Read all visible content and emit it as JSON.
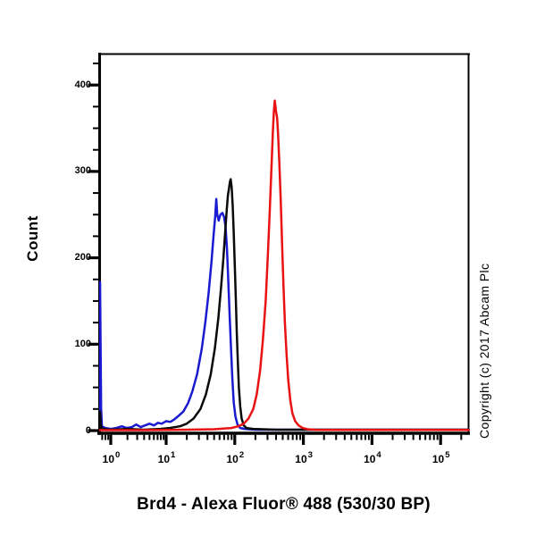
{
  "figure": {
    "y_axis_label": "Count",
    "x_axis_title": "Brd4 - Alexa Fluor® 488 (530/30 BP)",
    "copyright": "Copyright (c) 2017 Abcam Plc"
  },
  "chart_data": {
    "type": "line",
    "subtype": "flow-cytometry-histogram-overlay",
    "title": "Brd4 - Alexa Fluor® 488 (530/30 BP)",
    "xlabel": "Brd4 - Alexa Fluor® 488 (530/30 BP)",
    "ylabel": "Count",
    "x_scale": "log10",
    "x_tick_exponents": [
      0,
      1,
      2,
      3,
      4,
      5
    ],
    "x_range_log10": [
      -0.21,
      5.41
    ],
    "ylim": [
      0,
      435
    ],
    "y_ticks": [
      0,
      100,
      200,
      300,
      400
    ],
    "y_minor_step": 25,
    "grid": false,
    "legend": "none",
    "frame_color": "#000000",
    "series": [
      {
        "name": "blue-curve",
        "color": "#1a1ad0",
        "points": [
          [
            -0.21,
            2
          ],
          [
            -0.2,
            4
          ],
          [
            -0.193,
            172
          ],
          [
            -0.185,
            110
          ],
          [
            -0.175,
            25
          ],
          [
            -0.16,
            5
          ],
          [
            -0.1,
            3
          ],
          [
            0.0,
            2
          ],
          [
            0.1,
            3
          ],
          [
            0.2,
            5
          ],
          [
            0.28,
            3
          ],
          [
            0.38,
            4
          ],
          [
            0.46,
            7
          ],
          [
            0.54,
            4
          ],
          [
            0.62,
            6
          ],
          [
            0.7,
            8
          ],
          [
            0.78,
            6
          ],
          [
            0.85,
            9
          ],
          [
            0.92,
            8
          ],
          [
            1.0,
            11
          ],
          [
            1.06,
            10
          ],
          [
            1.12,
            13
          ],
          [
            1.18,
            17
          ],
          [
            1.25,
            22
          ],
          [
            1.32,
            32
          ],
          [
            1.38,
            45
          ],
          [
            1.45,
            65
          ],
          [
            1.52,
            95
          ],
          [
            1.57,
            125
          ],
          [
            1.62,
            160
          ],
          [
            1.66,
            195
          ],
          [
            1.69,
            225
          ],
          [
            1.715,
            248
          ],
          [
            1.73,
            268
          ],
          [
            1.745,
            250
          ],
          [
            1.765,
            243
          ],
          [
            1.79,
            250
          ],
          [
            1.82,
            252
          ],
          [
            1.845,
            247
          ],
          [
            1.865,
            237
          ],
          [
            1.885,
            212
          ],
          [
            1.905,
            175
          ],
          [
            1.925,
            135
          ],
          [
            1.945,
            95
          ],
          [
            1.965,
            60
          ],
          [
            1.985,
            33
          ],
          [
            2.01,
            16
          ],
          [
            2.04,
            7
          ],
          [
            2.08,
            3
          ],
          [
            2.14,
            2
          ],
          [
            2.3,
            1
          ],
          [
            3.2,
            1
          ],
          [
            4.3,
            1
          ],
          [
            5.41,
            1
          ]
        ]
      },
      {
        "name": "black-curve",
        "color": "#0a0a0a",
        "points": [
          [
            -0.21,
            1
          ],
          [
            -0.2,
            3
          ],
          [
            -0.193,
            22
          ],
          [
            -0.18,
            6
          ],
          [
            -0.15,
            2
          ],
          [
            0.0,
            1
          ],
          [
            0.3,
            2
          ],
          [
            0.6,
            1
          ],
          [
            0.9,
            2
          ],
          [
            1.05,
            3
          ],
          [
            1.2,
            5
          ],
          [
            1.3,
            8
          ],
          [
            1.4,
            14
          ],
          [
            1.5,
            25
          ],
          [
            1.58,
            42
          ],
          [
            1.65,
            65
          ],
          [
            1.71,
            95
          ],
          [
            1.76,
            130
          ],
          [
            1.8,
            165
          ],
          [
            1.835,
            200
          ],
          [
            1.865,
            235
          ],
          [
            1.885,
            258
          ],
          [
            1.9,
            272
          ],
          [
            1.915,
            280
          ],
          [
            1.93,
            288
          ],
          [
            1.94,
            291
          ],
          [
            1.955,
            282
          ],
          [
            1.97,
            260
          ],
          [
            1.985,
            230
          ],
          [
            2.0,
            192
          ],
          [
            2.015,
            152
          ],
          [
            2.03,
            112
          ],
          [
            2.045,
            78
          ],
          [
            2.06,
            50
          ],
          [
            2.08,
            28
          ],
          [
            2.1,
            14
          ],
          [
            2.13,
            6
          ],
          [
            2.17,
            3
          ],
          [
            2.27,
            2
          ],
          [
            2.6,
            1
          ],
          [
            4.0,
            1
          ],
          [
            5.41,
            1
          ]
        ]
      },
      {
        "name": "red-curve",
        "color": "#e81212",
        "points": [
          [
            -0.21,
            0.5
          ],
          [
            0.6,
            0.5
          ],
          [
            1.3,
            1
          ],
          [
            1.7,
            1.5
          ],
          [
            1.95,
            3
          ],
          [
            2.05,
            5
          ],
          [
            2.13,
            8
          ],
          [
            2.2,
            14
          ],
          [
            2.27,
            25
          ],
          [
            2.32,
            42
          ],
          [
            2.37,
            70
          ],
          [
            2.41,
            105
          ],
          [
            2.45,
            150
          ],
          [
            2.48,
            200
          ],
          [
            2.51,
            255
          ],
          [
            2.535,
            305
          ],
          [
            2.555,
            345
          ],
          [
            2.57,
            370
          ],
          [
            2.583,
            382
          ],
          [
            2.6,
            370
          ],
          [
            2.617,
            362
          ],
          [
            2.63,
            345
          ],
          [
            2.65,
            310
          ],
          [
            2.67,
            265
          ],
          [
            2.69,
            215
          ],
          [
            2.71,
            168
          ],
          [
            2.73,
            125
          ],
          [
            2.755,
            88
          ],
          [
            2.78,
            58
          ],
          [
            2.81,
            35
          ],
          [
            2.84,
            20
          ],
          [
            2.88,
            11
          ],
          [
            2.93,
            6
          ],
          [
            2.99,
            3
          ],
          [
            3.06,
            1.5
          ],
          [
            3.2,
            0.8
          ],
          [
            3.8,
            0.8
          ],
          [
            4.6,
            0.8
          ],
          [
            5.41,
            0.8
          ]
        ]
      }
    ]
  }
}
